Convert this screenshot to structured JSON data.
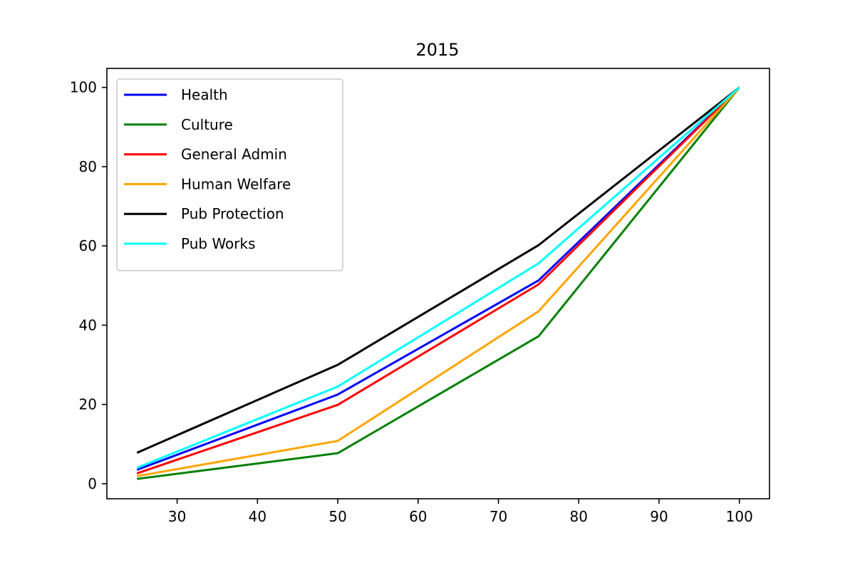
{
  "chart_data": {
    "type": "line",
    "title": "2015",
    "xlabel": "",
    "ylabel": "",
    "x": [
      25,
      50,
      75,
      100
    ],
    "xlim": [
      21.25,
      103.75
    ],
    "ylim": [
      -3.8,
      104.8
    ],
    "xticks": [
      30,
      40,
      50,
      60,
      70,
      80,
      90,
      100
    ],
    "yticks": [
      0,
      20,
      40,
      60,
      80,
      100
    ],
    "grid": false,
    "legend_position": "top-left",
    "series": [
      {
        "name": "Health",
        "color": "#0000ff",
        "values": [
          3.5,
          22.5,
          51.3,
          100
        ]
      },
      {
        "name": "Culture",
        "color": "#008000",
        "values": [
          1.2,
          7.7,
          37.2,
          100
        ]
      },
      {
        "name": "General Admin",
        "color": "#ff0000",
        "values": [
          2.6,
          19.9,
          50.3,
          100
        ]
      },
      {
        "name": "Human Welfare",
        "color": "#ffa500",
        "values": [
          1.9,
          10.8,
          43.5,
          100
        ]
      },
      {
        "name": "Pub Protection",
        "color": "#000000",
        "values": [
          7.8,
          30.0,
          60.2,
          100
        ]
      },
      {
        "name": "Pub Works",
        "color": "#00ffff",
        "values": [
          4.0,
          24.5,
          55.6,
          100
        ]
      }
    ]
  }
}
